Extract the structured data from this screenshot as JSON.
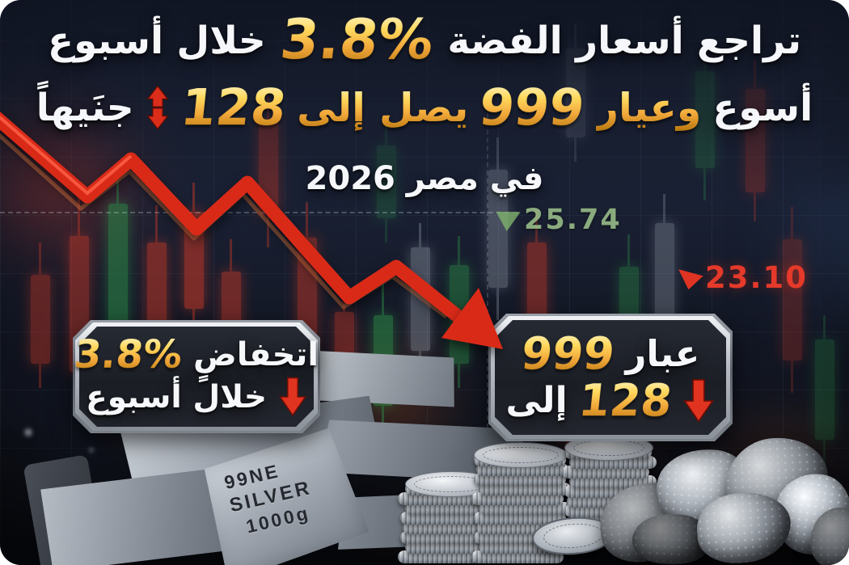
{
  "title": {
    "line1": {
      "lead": "تراجع أسعار الفضة",
      "percent": "3.8%",
      "tail": "خلال أسبوع"
    },
    "line2": {
      "lead": "أسوع",
      "gold_word1": "وعيار",
      "karat": "999",
      "gold_word2": "يصل إلى",
      "price": "128",
      "tail": "جنَيهاً"
    },
    "line3": {
      "text": "في مصر 2026"
    }
  },
  "chart_labels": {
    "high": {
      "value": "25.74",
      "color": "#9ec48c"
    },
    "low": {
      "value": "23.10",
      "color": "#e5392a"
    }
  },
  "badge_left": {
    "word": "اتخفاضٍ",
    "percent": "3.8%",
    "period": "خلال أسبوع"
  },
  "badge_right": {
    "word": "عبار",
    "karat": "999",
    "to": "إلى",
    "price": "128"
  },
  "ingot_stamp": {
    "line1": "99NE",
    "line2": "SILVER",
    "line3": "1000g"
  },
  "icons": {
    "title_arrows": "up-down-red-arrows",
    "badge_left_arrow": "red-down-arrow",
    "badge_right_arrow": "red-down-arrow",
    "trend_arrow": "red-downtrend-zigzag-arrow",
    "high_marker": "green-tick-marker",
    "low_marker": "red-tick-marker"
  },
  "colors": {
    "gold": "#f5b43a",
    "red": "#da2a18",
    "green": "#8fbf7f",
    "background": "#1b2233",
    "panel": "#20242c",
    "frame": "#ccd1d8"
  }
}
